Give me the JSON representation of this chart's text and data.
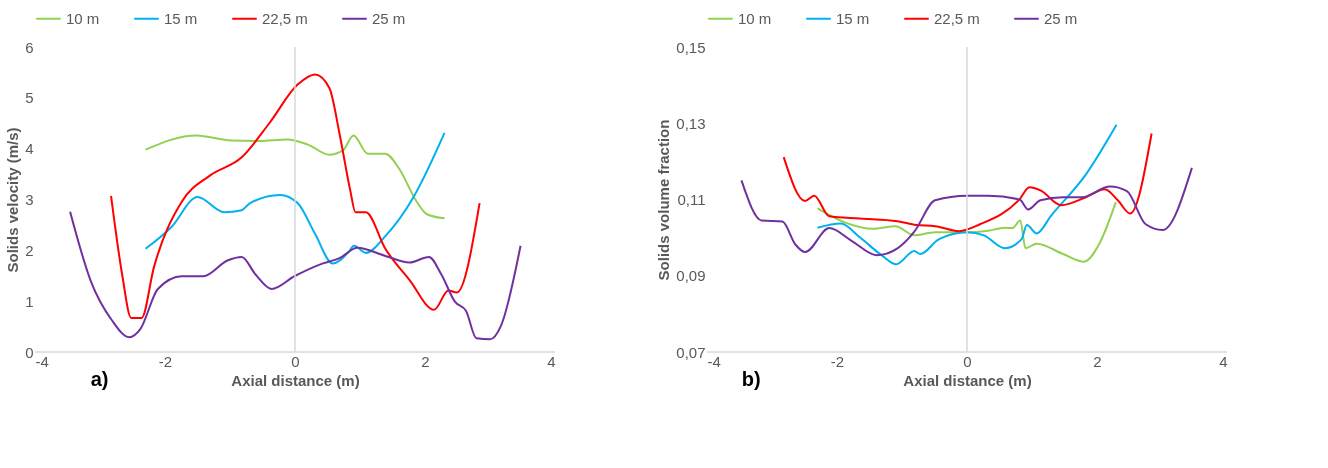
{
  "chart_data": [
    {
      "type": "line",
      "xlabel": "Axial distance (m)",
      "ylabel": "Solids velocity (m/s)",
      "annotations": [
        "a)"
      ],
      "xlim": [
        -4,
        4
      ],
      "xticks": [
        -4,
        -2,
        0,
        2,
        4
      ],
      "ylim": [
        0,
        6
      ],
      "yticks": [
        0,
        1,
        2,
        3,
        4,
        5,
        6
      ],
      "grid": false,
      "legend": "top",
      "marker": "none",
      "line_style": "solid",
      "ref_lines": [
        {
          "axis": "x",
          "value": 0,
          "color": "#d9d9d9"
        }
      ],
      "series": [
        {
          "name": "10 m",
          "color": "#92d050",
          "x": [
            -2.3,
            -1.52,
            -0.98,
            -0.55,
            -0.12,
            0.2,
            0.53,
            0.74,
            0.9,
            1.12,
            1.39,
            1.6,
            1.87,
            2.03,
            2.3
          ],
          "values": [
            3.98,
            4.26,
            4.16,
            4.15,
            4.18,
            4.08,
            3.88,
            3.97,
            4.26,
            3.9,
            3.9,
            3.61,
            2.96,
            2.71,
            2.63
          ]
        },
        {
          "name": "15 m",
          "color": "#00b0f0",
          "x": [
            -2.3,
            -1.9,
            -1.5,
            -1.09,
            -0.82,
            -0.69,
            -0.23,
            0.04,
            0.31,
            0.58,
            0.82,
            0.91,
            1.09,
            1.39,
            1.82,
            2.3
          ],
          "values": [
            2.03,
            2.46,
            3.05,
            2.75,
            2.79,
            2.93,
            3.09,
            2.93,
            2.32,
            1.74,
            1.96,
            2.09,
            1.95,
            2.28,
            3.04,
            4.31
          ]
        },
        {
          "name": "22,5 m",
          "color": "#ff0000",
          "x": [
            -2.83,
            -2.66,
            -2.52,
            -2.36,
            -2.17,
            -1.74,
            -1.31,
            -0.82,
            -0.39,
            0.04,
            0.31,
            0.53,
            0.69,
            0.85,
            0.93,
            1.09,
            1.39,
            1.76,
            2.14,
            2.36,
            2.49,
            2.84
          ],
          "values": [
            3.07,
            1.53,
            0.67,
            0.67,
            1.67,
            2.96,
            3.47,
            3.83,
            4.51,
            5.26,
            5.46,
            5.19,
            4.26,
            3.18,
            2.75,
            2.75,
            2.03,
            1.42,
            0.83,
            1.21,
            1.17,
            2.93
          ]
        },
        {
          "name": "25 m",
          "color": "#7030a0",
          "x": [
            -3.46,
            -3.14,
            -2.82,
            -2.55,
            -2.38,
            -2.11,
            -1.74,
            -1.41,
            -1.04,
            -0.82,
            -0.61,
            -0.36,
            -0.01,
            0.36,
            0.69,
            0.96,
            1.39,
            1.76,
            2.06,
            2.25,
            2.46,
            2.63,
            2.79,
            3.0,
            3.17,
            3.47
          ],
          "values": [
            2.76,
            1.39,
            0.63,
            0.29,
            0.45,
            1.24,
            1.49,
            1.49,
            1.8,
            1.87,
            1.53,
            1.24,
            1.49,
            1.71,
            1.85,
            2.05,
            1.89,
            1.76,
            1.87,
            1.53,
            0.99,
            0.81,
            0.27,
            0.25,
            0.52,
            2.09
          ]
        }
      ]
    },
    {
      "type": "line",
      "xlabel": "Axial distance (m)",
      "ylabel": "Solids volume fraction",
      "annotations": [
        "b)"
      ],
      "xlim": [
        -4,
        4
      ],
      "xticks": [
        -4,
        -2,
        0,
        2,
        4
      ],
      "ylim": [
        0.07,
        0.15
      ],
      "yticks": [
        {
          "value": 0.07,
          "label": "0,07"
        },
        {
          "value": 0.09,
          "label": "0,09"
        },
        {
          "value": 0.11,
          "label": "0,11"
        },
        {
          "value": 0.13,
          "label": "0,13"
        },
        {
          "value": 0.15,
          "label": "0,15"
        }
      ],
      "grid": false,
      "legend": "top",
      "marker": "none",
      "line_style": "solid",
      "ref_lines": [
        {
          "axis": "x",
          "value": 0,
          "color": "#d9d9d9"
        }
      ],
      "series": [
        {
          "name": "10 m",
          "color": "#92d050",
          "x": [
            -2.3,
            -1.88,
            -1.45,
            -1.1,
            -0.81,
            -0.49,
            0,
            0.32,
            0.58,
            0.7,
            0.82,
            0.9,
            1.07,
            1.48,
            1.8,
            2.03,
            2.29
          ],
          "values": [
            0.1077,
            0.104,
            0.1023,
            0.103,
            0.1006,
            0.1014,
            0.1014,
            0.1018,
            0.1026,
            0.1025,
            0.1045,
            0.0972,
            0.0984,
            0.0957,
            0.0937,
            0.0982,
            0.1093
          ]
        },
        {
          "name": "15 m",
          "color": "#00b0f0",
          "x": [
            -2.3,
            -1.94,
            -1.65,
            -1.3,
            -1.09,
            -0.81,
            -0.72,
            -0.43,
            0,
            0.26,
            0.58,
            0.84,
            0.92,
            1.07,
            1.3,
            1.83,
            2.3
          ],
          "values": [
            0.1026,
            0.1037,
            0.1001,
            0.0952,
            0.093,
            0.0965,
            0.0957,
            0.0996,
            0.1014,
            0.1006,
            0.0972,
            0.0996,
            0.1033,
            0.1011,
            0.1059,
            0.1166,
            0.1296
          ]
        },
        {
          "name": "22,5 m",
          "color": "#ff0000",
          "x": [
            -2.82,
            -2.49,
            -2.35,
            -2.12,
            -1.65,
            -1.07,
            -0.78,
            -0.49,
            -0.12,
            0.2,
            0.81,
            0.96,
            1.13,
            1.45,
            1.83,
            2.12,
            2.32,
            2.51,
            2.84
          ],
          "values": [
            0.1211,
            0.1096,
            0.111,
            0.1056,
            0.105,
            0.1043,
            0.1033,
            0.103,
            0.1017,
            0.1035,
            0.1101,
            0.1132,
            0.1124,
            0.1085,
            0.1106,
            0.1127,
            0.1098,
            0.1063,
            0.1273
          ]
        },
        {
          "name": "25 m",
          "color": "#7030a0",
          "x": [
            -3.47,
            -3.16,
            -2.84,
            -2.64,
            -2.49,
            -2.12,
            -1.77,
            -1.39,
            -1.07,
            -0.81,
            -0.49,
            0,
            0.32,
            0.81,
            0.94,
            1.13,
            1.48,
            1.77,
            2.2,
            2.46,
            2.75,
            3.01,
            3.46
          ],
          "values": [
            0.115,
            0.1045,
            0.1042,
            0.0982,
            0.0962,
            0.1025,
            0.0991,
            0.0954,
            0.0972,
            0.1016,
            0.1098,
            0.111,
            0.111,
            0.11,
            0.1074,
            0.1098,
            0.1106,
            0.1106,
            0.1134,
            0.1122,
            0.1035,
            0.102,
            0.1183
          ]
        }
      ]
    }
  ]
}
